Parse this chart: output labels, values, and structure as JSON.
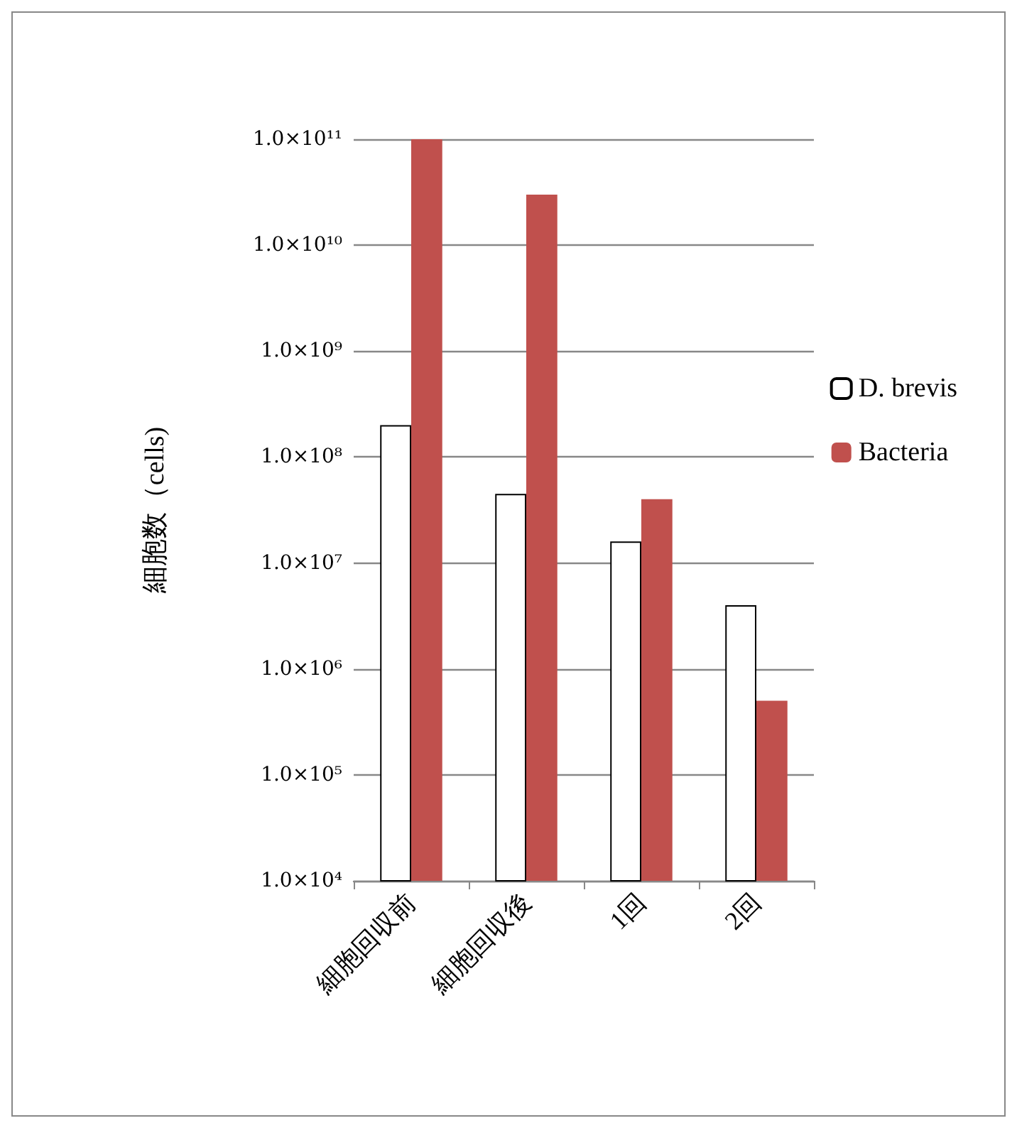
{
  "chart_data": {
    "type": "bar",
    "ylabel": "細胞数（cells)",
    "categories": [
      "細胞回収前",
      "細胞回収後",
      "1回",
      "2回"
    ],
    "series": [
      {
        "name": "D. brevis",
        "color": "#ffffff",
        "values": [
          200000000.0,
          45000000.0,
          16000000.0,
          4000000.0
        ]
      },
      {
        "name": "Bacteria",
        "color": "#c0504d",
        "values": [
          100000000000.0,
          30000000000.0,
          40000000.0,
          500000.0
        ]
      }
    ],
    "log": "y",
    "ylim": [
      10000,
      100000000000
    ],
    "yticks": [
      {
        "value": 10000,
        "label": "1.0×10⁴"
      },
      {
        "value": 100000,
        "label": "1.0×10⁵"
      },
      {
        "value": 1000000,
        "label": "1.0×10⁶"
      },
      {
        "value": 10000000,
        "label": "1.0×10⁷"
      },
      {
        "value": 100000000,
        "label": "1.0×10⁸"
      },
      {
        "value": 1000000000,
        "label": "1.0×10⁹"
      },
      {
        "value": 10000000000,
        "label": "1.0×10¹⁰"
      },
      {
        "value": 100000000000,
        "label": "1.0×10¹¹"
      }
    ],
    "grid": "y",
    "legend": "right"
  }
}
